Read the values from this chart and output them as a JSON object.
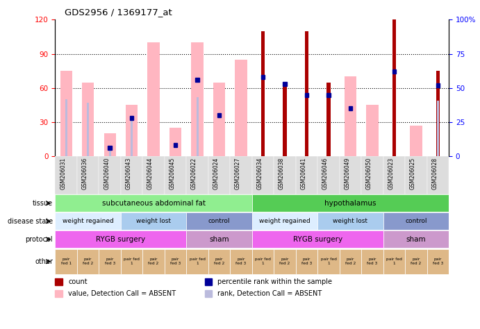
{
  "title": "GDS2956 / 1369177_at",
  "samples": [
    "GSM206031",
    "GSM206036",
    "GSM206040",
    "GSM206043",
    "GSM206044",
    "GSM206045",
    "GSM206022",
    "GSM206024",
    "GSM206027",
    "GSM206034",
    "GSM206038",
    "GSM206041",
    "GSM206046",
    "GSM206049",
    "GSM206050",
    "GSM206023",
    "GSM206025",
    "GSM206028"
  ],
  "count_values": [
    0,
    0,
    0,
    0,
    0,
    0,
    0,
    0,
    0,
    110,
    65,
    110,
    65,
    0,
    0,
    120,
    0,
    75
  ],
  "pink_values": [
    75,
    65,
    20,
    45,
    100,
    25,
    100,
    65,
    85,
    0,
    0,
    0,
    0,
    70,
    45,
    0,
    27,
    0
  ],
  "percentile_values": [
    0,
    0,
    6,
    28,
    0,
    8,
    56,
    30,
    0,
    58,
    53,
    45,
    45,
    35,
    0,
    62,
    0,
    52
  ],
  "rank_absent_values": [
    50,
    47,
    7,
    35,
    0,
    0,
    52,
    0,
    0,
    0,
    0,
    0,
    0,
    0,
    0,
    0,
    0,
    49
  ],
  "ylim_left": [
    0,
    120
  ],
  "ylim_right": [
    0,
    100
  ],
  "left_ticks": [
    0,
    30,
    60,
    90,
    120
  ],
  "right_ticks": [
    0,
    25,
    50,
    75,
    100
  ],
  "right_tick_labels": [
    "0",
    "25",
    "50",
    "75",
    "100%"
  ],
  "grid_lines": [
    30,
    60,
    90
  ],
  "tissue_groups": [
    {
      "label": "subcutaneous abdominal fat",
      "start": 0,
      "end": 9,
      "color": "#90EE90"
    },
    {
      "label": "hypothalamus",
      "start": 9,
      "end": 18,
      "color": "#55CC55"
    }
  ],
  "disease_state_groups": [
    {
      "label": "weight regained",
      "start": 0,
      "end": 3,
      "color": "#DDEEFF"
    },
    {
      "label": "weight lost",
      "start": 3,
      "end": 6,
      "color": "#AACCEE"
    },
    {
      "label": "control",
      "start": 6,
      "end": 9,
      "color": "#8899CC"
    },
    {
      "label": "weight regained",
      "start": 9,
      "end": 12,
      "color": "#DDEEFF"
    },
    {
      "label": "weight lost",
      "start": 12,
      "end": 15,
      "color": "#AACCEE"
    },
    {
      "label": "control",
      "start": 15,
      "end": 18,
      "color": "#8899CC"
    }
  ],
  "protocol_groups": [
    {
      "label": "RYGB surgery",
      "start": 0,
      "end": 6,
      "color": "#EE66EE"
    },
    {
      "label": "sham",
      "start": 6,
      "end": 9,
      "color": "#CC99CC"
    },
    {
      "label": "RYGB surgery",
      "start": 9,
      "end": 15,
      "color": "#EE66EE"
    },
    {
      "label": "sham",
      "start": 15,
      "end": 18,
      "color": "#CC99CC"
    }
  ],
  "other_labels": [
    "pair\nfed 1",
    "pair\nfed 2",
    "pair\nfed 3",
    "pair fed\n1",
    "pair\nfed 2",
    "pair\nfed 3",
    "pair fed\n1",
    "pair\nfed 2",
    "pair\nfed 3",
    "pair fed\n1",
    "pair\nfed 2",
    "pair\nfed 3",
    "pair fed\n1",
    "pair\nfed 2",
    "pair\nfed 3",
    "pair fed\n1",
    "pair\nfed 2",
    "pair\nfed 3"
  ],
  "other_color": "#DEB887",
  "count_color": "#AA0000",
  "pink_color": "#FFB6C1",
  "percentile_color": "#000099",
  "rank_absent_color": "#BBBBDD",
  "legend_items": [
    {
      "color": "#AA0000",
      "label": "count"
    },
    {
      "color": "#000099",
      "label": "percentile rank within the sample"
    },
    {
      "color": "#FFB6C1",
      "label": "value, Detection Call = ABSENT"
    },
    {
      "color": "#BBBBDD",
      "label": "rank, Detection Call = ABSENT"
    }
  ],
  "row_labels": [
    "tissue",
    "disease state",
    "protocol",
    "other"
  ],
  "xticklabel_bg": "#DDDDDD"
}
